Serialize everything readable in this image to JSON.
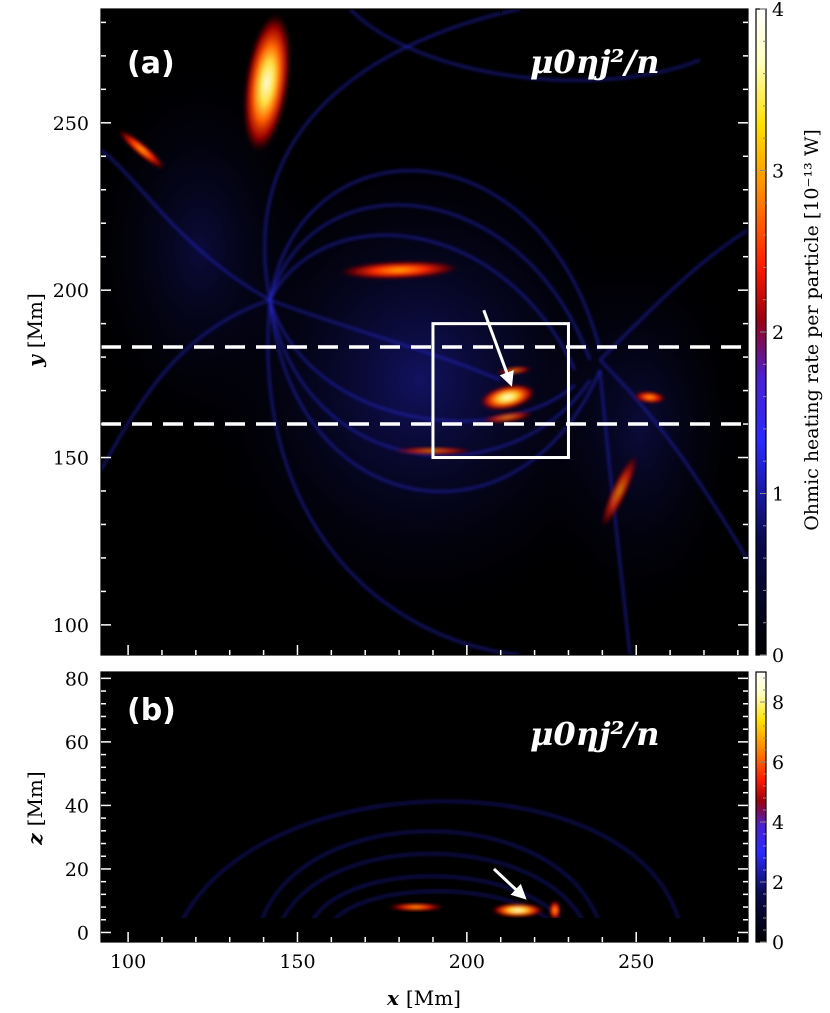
{
  "chart_data": [
    {
      "type": "heatmap",
      "panel": "(a)",
      "annotation": "μ0ηj²/n",
      "xlim": [
        92,
        283
      ],
      "ylim": [
        91,
        284
      ],
      "x_ticks": [
        100,
        150,
        200,
        250
      ],
      "y_ticks": [
        100,
        150,
        200,
        250
      ],
      "xlabel": "",
      "ylabel_var": "y",
      "ylabel_unit": "[Mm]",
      "dashed_lines_y": [
        183,
        160
      ],
      "box": {
        "x0": 190,
        "x1": 230,
        "y0": 150,
        "y1": 190
      },
      "arrow": {
        "from": [
          205,
          194
        ],
        "to": [
          213,
          172
        ]
      },
      "colorbar": {
        "min": 0,
        "max": 4,
        "ticks": [
          0,
          1,
          2,
          3,
          4
        ]
      },
      "features": [
        {
          "x": 141,
          "y": 262,
          "intensity": 4.0
        },
        {
          "x": 212,
          "y": 168,
          "intensity": 3.6
        },
        {
          "x": 180,
          "y": 206,
          "intensity": 2.2
        },
        {
          "x": 254,
          "y": 168,
          "intensity": 1.8
        },
        {
          "x": 104,
          "y": 242,
          "intensity": 1.6
        }
      ]
    },
    {
      "type": "heatmap",
      "panel": "(b)",
      "annotation": "μ0ηj²/n",
      "xlim": [
        92,
        283
      ],
      "ylim": [
        -3,
        82
      ],
      "x_ticks": [
        100,
        150,
        200,
        250
      ],
      "y_ticks": [
        0,
        20,
        40,
        60,
        80
      ],
      "xlabel_var": "x",
      "xlabel_unit": "[Mm]",
      "ylabel_var": "z",
      "ylabel_unit": "[Mm]",
      "arrow": {
        "from": [
          208,
          20
        ],
        "to": [
          217,
          11
        ]
      },
      "colorbar": {
        "min": 0,
        "max": 9,
        "ticks": [
          0,
          2,
          4,
          6,
          8
        ]
      },
      "features": [
        {
          "x": 215,
          "z": 7,
          "intensity": 9.0
        },
        {
          "x": 185,
          "z": 8,
          "intensity": 4.0
        },
        {
          "x": 226,
          "z": 7,
          "intensity": 4.0
        }
      ]
    }
  ],
  "colorbar_title": "Ohmic heating rate per particle [10⁻¹³ W]",
  "colors": {
    "colormap": [
      "#000000",
      "#07072a",
      "#11116a",
      "#2121c8",
      "#3a3aff",
      "#5a1ab8",
      "#a00000",
      "#ff1a00",
      "#ff8000",
      "#ffe000",
      "#ffffd8",
      "#ffffff"
    ],
    "background": "#000000",
    "overlay": "#ffffff"
  }
}
